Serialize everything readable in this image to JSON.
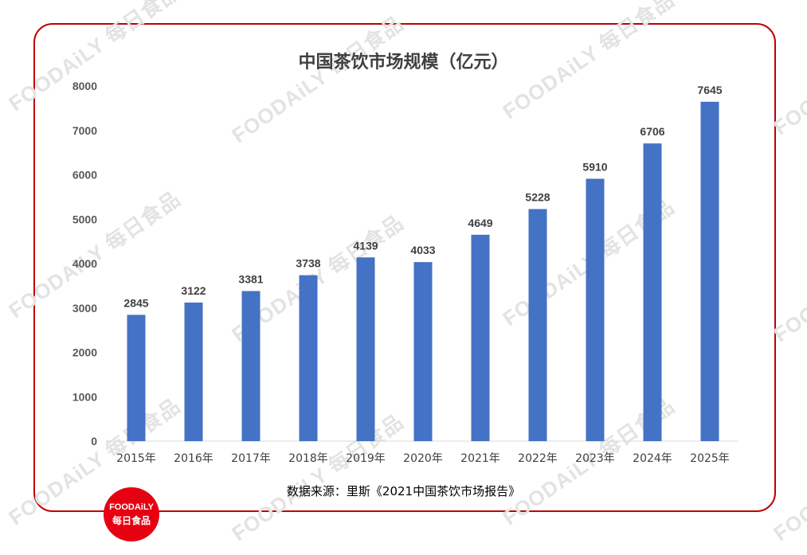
{
  "watermark_text": "FOODAiLY 每日食品",
  "chart_data": {
    "type": "bar",
    "title": "中国茶饮市场规模（亿元）",
    "categories": [
      "2015年",
      "2016年",
      "2017年",
      "2018年",
      "2019年",
      "2020年",
      "2021年",
      "2022年",
      "2023年",
      "2024年",
      "2025年"
    ],
    "values": [
      2845,
      3122,
      3381,
      3738,
      4139,
      4033,
      4649,
      5228,
      5910,
      6706,
      7645
    ],
    "yticks": [
      0,
      1000,
      2000,
      3000,
      4000,
      5000,
      6000,
      7000,
      8000
    ],
    "ylim": [
      0,
      8000
    ],
    "xlabel": "",
    "ylabel": "",
    "bar_color": "#4472c4",
    "grid": false
  },
  "source_text": "数据来源：里斯《2021中国茶饮市场报告》",
  "logo": {
    "line1": "FOODAiLY",
    "line2": "每日食品",
    "color": "#e60012"
  },
  "frame_color": "#c00000"
}
